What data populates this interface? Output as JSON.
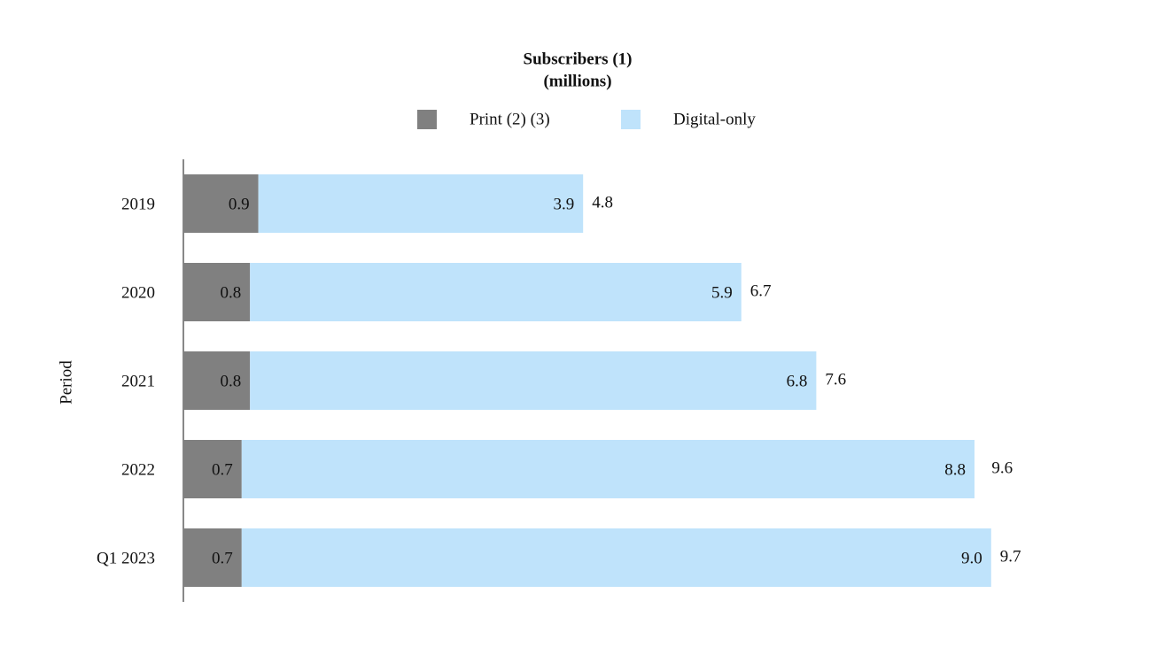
{
  "chart_data": {
    "type": "stacked-barh",
    "title": "Subscribers (1)",
    "subtitle": "(millions)",
    "y_label": "Period",
    "categories": [
      "2019",
      "2020",
      "2021",
      "2022",
      "Q1 2023"
    ],
    "series": [
      {
        "name": "Print (2) (3)",
        "color": "#808080",
        "values": [
          0.9,
          0.8,
          0.8,
          0.7,
          0.7
        ]
      },
      {
        "name": "Digital-only",
        "color": "#bfe3fb",
        "values": [
          3.9,
          5.9,
          6.8,
          8.8,
          9.0
        ],
        "value_labels": [
          "3.9",
          "5.9",
          "6.8",
          "8.8",
          "9.0"
        ]
      }
    ],
    "totals": [
      4.8,
      6.7,
      7.6,
      9.6,
      9.7
    ],
    "xlim": [
      0,
      10
    ]
  }
}
